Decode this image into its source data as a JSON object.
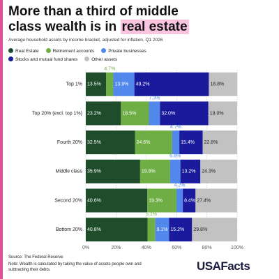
{
  "chart_data": {
    "type": "stacked-barh",
    "title_parts": [
      "More than a third of middle class wealth is in",
      "real estate"
    ],
    "subtitle": "Average household assets by income bracket, adjusted for inflation, Q1 2026",
    "categories": [
      "Top 1%",
      "Top 20% (excl. top 1%)",
      "Fourth 20%",
      "Middle class",
      "Second 20%",
      "Bottom 20%"
    ],
    "series": [
      {
        "name": "Real Estate",
        "color": "#1f4d2c",
        "label_color": "#ffffff",
        "values": [
          13.5,
          23.2,
          32.5,
          35.9,
          40.6,
          40.8
        ],
        "value_labels": [
          "13.5%",
          "23.2%",
          "32.5%",
          "35.9%",
          "40.6%",
          "40.8%"
        ]
      },
      {
        "name": "Retirement accounts",
        "color": "#6fae45",
        "label_color": "#ffffff",
        "values": [
          4.7,
          18.5,
          24.6,
          19.8,
          19.3,
          5.1
        ],
        "value_labels": [
          "4.7%",
          "18.5%",
          "24.6%",
          "19.8%",
          "19.3%",
          "5.1%"
        ]
      },
      {
        "name": "Private businesses",
        "color": "#5288ec",
        "label_color": "#ffffff",
        "values": [
          13.9,
          7.3,
          4.7,
          6.8,
          4.2,
          9.1
        ],
        "value_labels": [
          "13.9%",
          "7.3%",
          "4.7%",
          "6.8%",
          "4.2%",
          "9.1%"
        ]
      },
      {
        "name": "Stocks and mutual fund shares",
        "color": "#1a1a9c",
        "label_color": "#ffffff",
        "values": [
          49.2,
          32.0,
          15.4,
          13.2,
          8.4,
          15.2
        ],
        "value_labels": [
          "49.2%",
          "32.0%",
          "15.4%",
          "13.2%",
          "8.4%",
          "15.2%"
        ]
      },
      {
        "name": "Other assets",
        "color": "#c2c2c2",
        "label_color": "#222222",
        "values": [
          18.8,
          19.0,
          22.8,
          24.3,
          27.4,
          29.8
        ],
        "value_labels": [
          "18.8%",
          "19.0%",
          "22.8%",
          "24.3%",
          "27.4%",
          "29.8%"
        ]
      }
    ],
    "xlim": [
      0,
      100
    ],
    "xticks": [
      {
        "value": 0,
        "label": "0%"
      },
      {
        "value": 20,
        "label": "20%"
      },
      {
        "value": 40,
        "label": "40%"
      },
      {
        "value": 60,
        "label": "60%"
      },
      {
        "value": 80,
        "label": "80%"
      },
      {
        "value": 100,
        "label": "100%"
      }
    ],
    "grid": true,
    "source": "Source: The Federal Reserve",
    "note": "Note: Wealth is calculated by taking the value of assets people own and subtracting their debts.",
    "logo": "USAFacts"
  }
}
